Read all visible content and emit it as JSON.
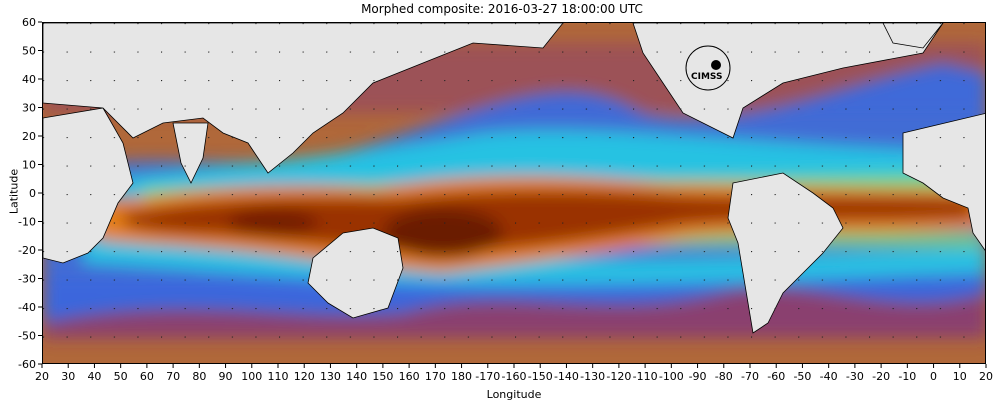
{
  "title": "Morphed composite: 2016-03-27 18:00:00 UTC",
  "xlabel": "Longitude",
  "ylabel": "Latitude",
  "x_ticks": [
    "20",
    "30",
    "40",
    "50",
    "60",
    "70",
    "80",
    "90",
    "100",
    "110",
    "120",
    "130",
    "140",
    "150",
    "160",
    "170",
    "180",
    "-170",
    "-160",
    "-150",
    "-140",
    "-130",
    "-120",
    "-110",
    "-100",
    "-90",
    "-80",
    "-70",
    "-60",
    "-50",
    "-40",
    "-30",
    "-20",
    "-10",
    "0",
    "10",
    "20"
  ],
  "y_ticks": [
    "60",
    "50",
    "40",
    "30",
    "20",
    "10",
    "0",
    "-10",
    "-20",
    "-30",
    "-40",
    "-50",
    "-60"
  ],
  "logo_text": "CIMSS",
  "colors": {
    "land": "#e6e6e6",
    "dry": "#b0683a",
    "purple": "#7a2f86",
    "blue": "#2f6df0",
    "cyan": "#20d8e6",
    "green": "#7de06a",
    "orange": "#e5801a",
    "moist": "#9a3000",
    "very_moist": "#6a1a00"
  }
}
